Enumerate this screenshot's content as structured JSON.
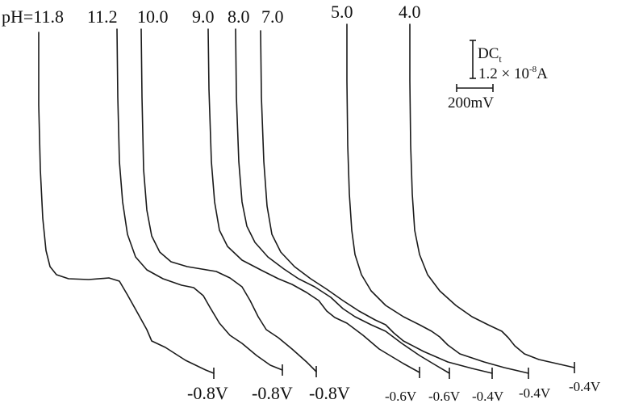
{
  "chart_data": {
    "type": "line",
    "title": "",
    "xlabel": "",
    "ylabel": "",
    "series": [
      {
        "name": "pH=11.8",
        "end_potential": "-0.8V"
      },
      {
        "name": "11.2",
        "end_potential": "-0.8V"
      },
      {
        "name": "10.0",
        "end_potential": "-0.8V"
      },
      {
        "name": "9.0",
        "end_potential": "-0.6V"
      },
      {
        "name": "8.0",
        "end_potential": "-0.6V"
      },
      {
        "name": "7.0",
        "end_potential": "-0.4V"
      },
      {
        "name": "5.0",
        "end_potential": "-0.4V"
      },
      {
        "name": "4.0",
        "end_potential": "-0.4V"
      }
    ],
    "scale_bar": {
      "current_label": "DC",
      "current_subscript": "t",
      "current_value": "1.2 × 10",
      "current_exponent": "-8",
      "current_unit": "A",
      "potential_label": "200mV"
    },
    "grid": false
  }
}
